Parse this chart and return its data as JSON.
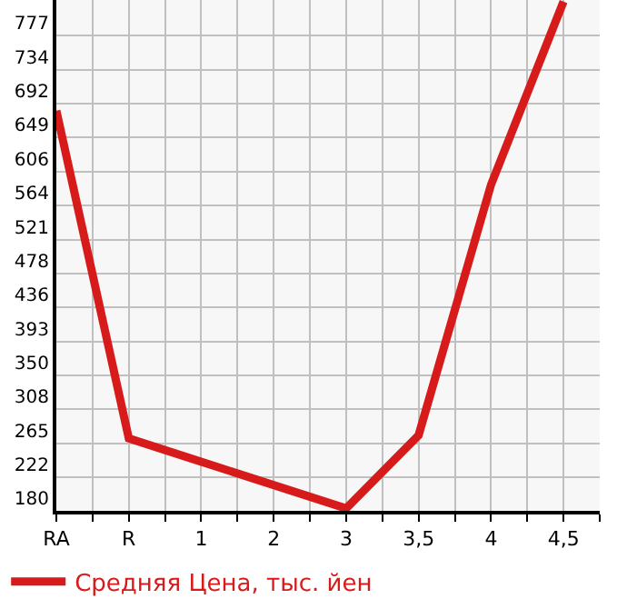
{
  "chart_data": {
    "type": "line",
    "categories": [
      "RA",
      "R",
      "1",
      "2",
      "3",
      "3,5",
      "4",
      "4,5"
    ],
    "series": [
      {
        "name": "Средняя Цена, тыс. йен",
        "color": "#d71a1a",
        "values": [
          683,
          271,
          null,
          null,
          183,
          275,
          590,
          820
        ]
      }
    ],
    "ylim": [
      180,
      822
    ],
    "yticks": [
      180,
      222,
      265,
      308,
      350,
      393,
      436,
      478,
      521,
      564,
      606,
      649,
      692,
      734,
      777
    ],
    "grid": true,
    "legend": "bottom",
    "marker": "none",
    "line_style": "solid"
  }
}
